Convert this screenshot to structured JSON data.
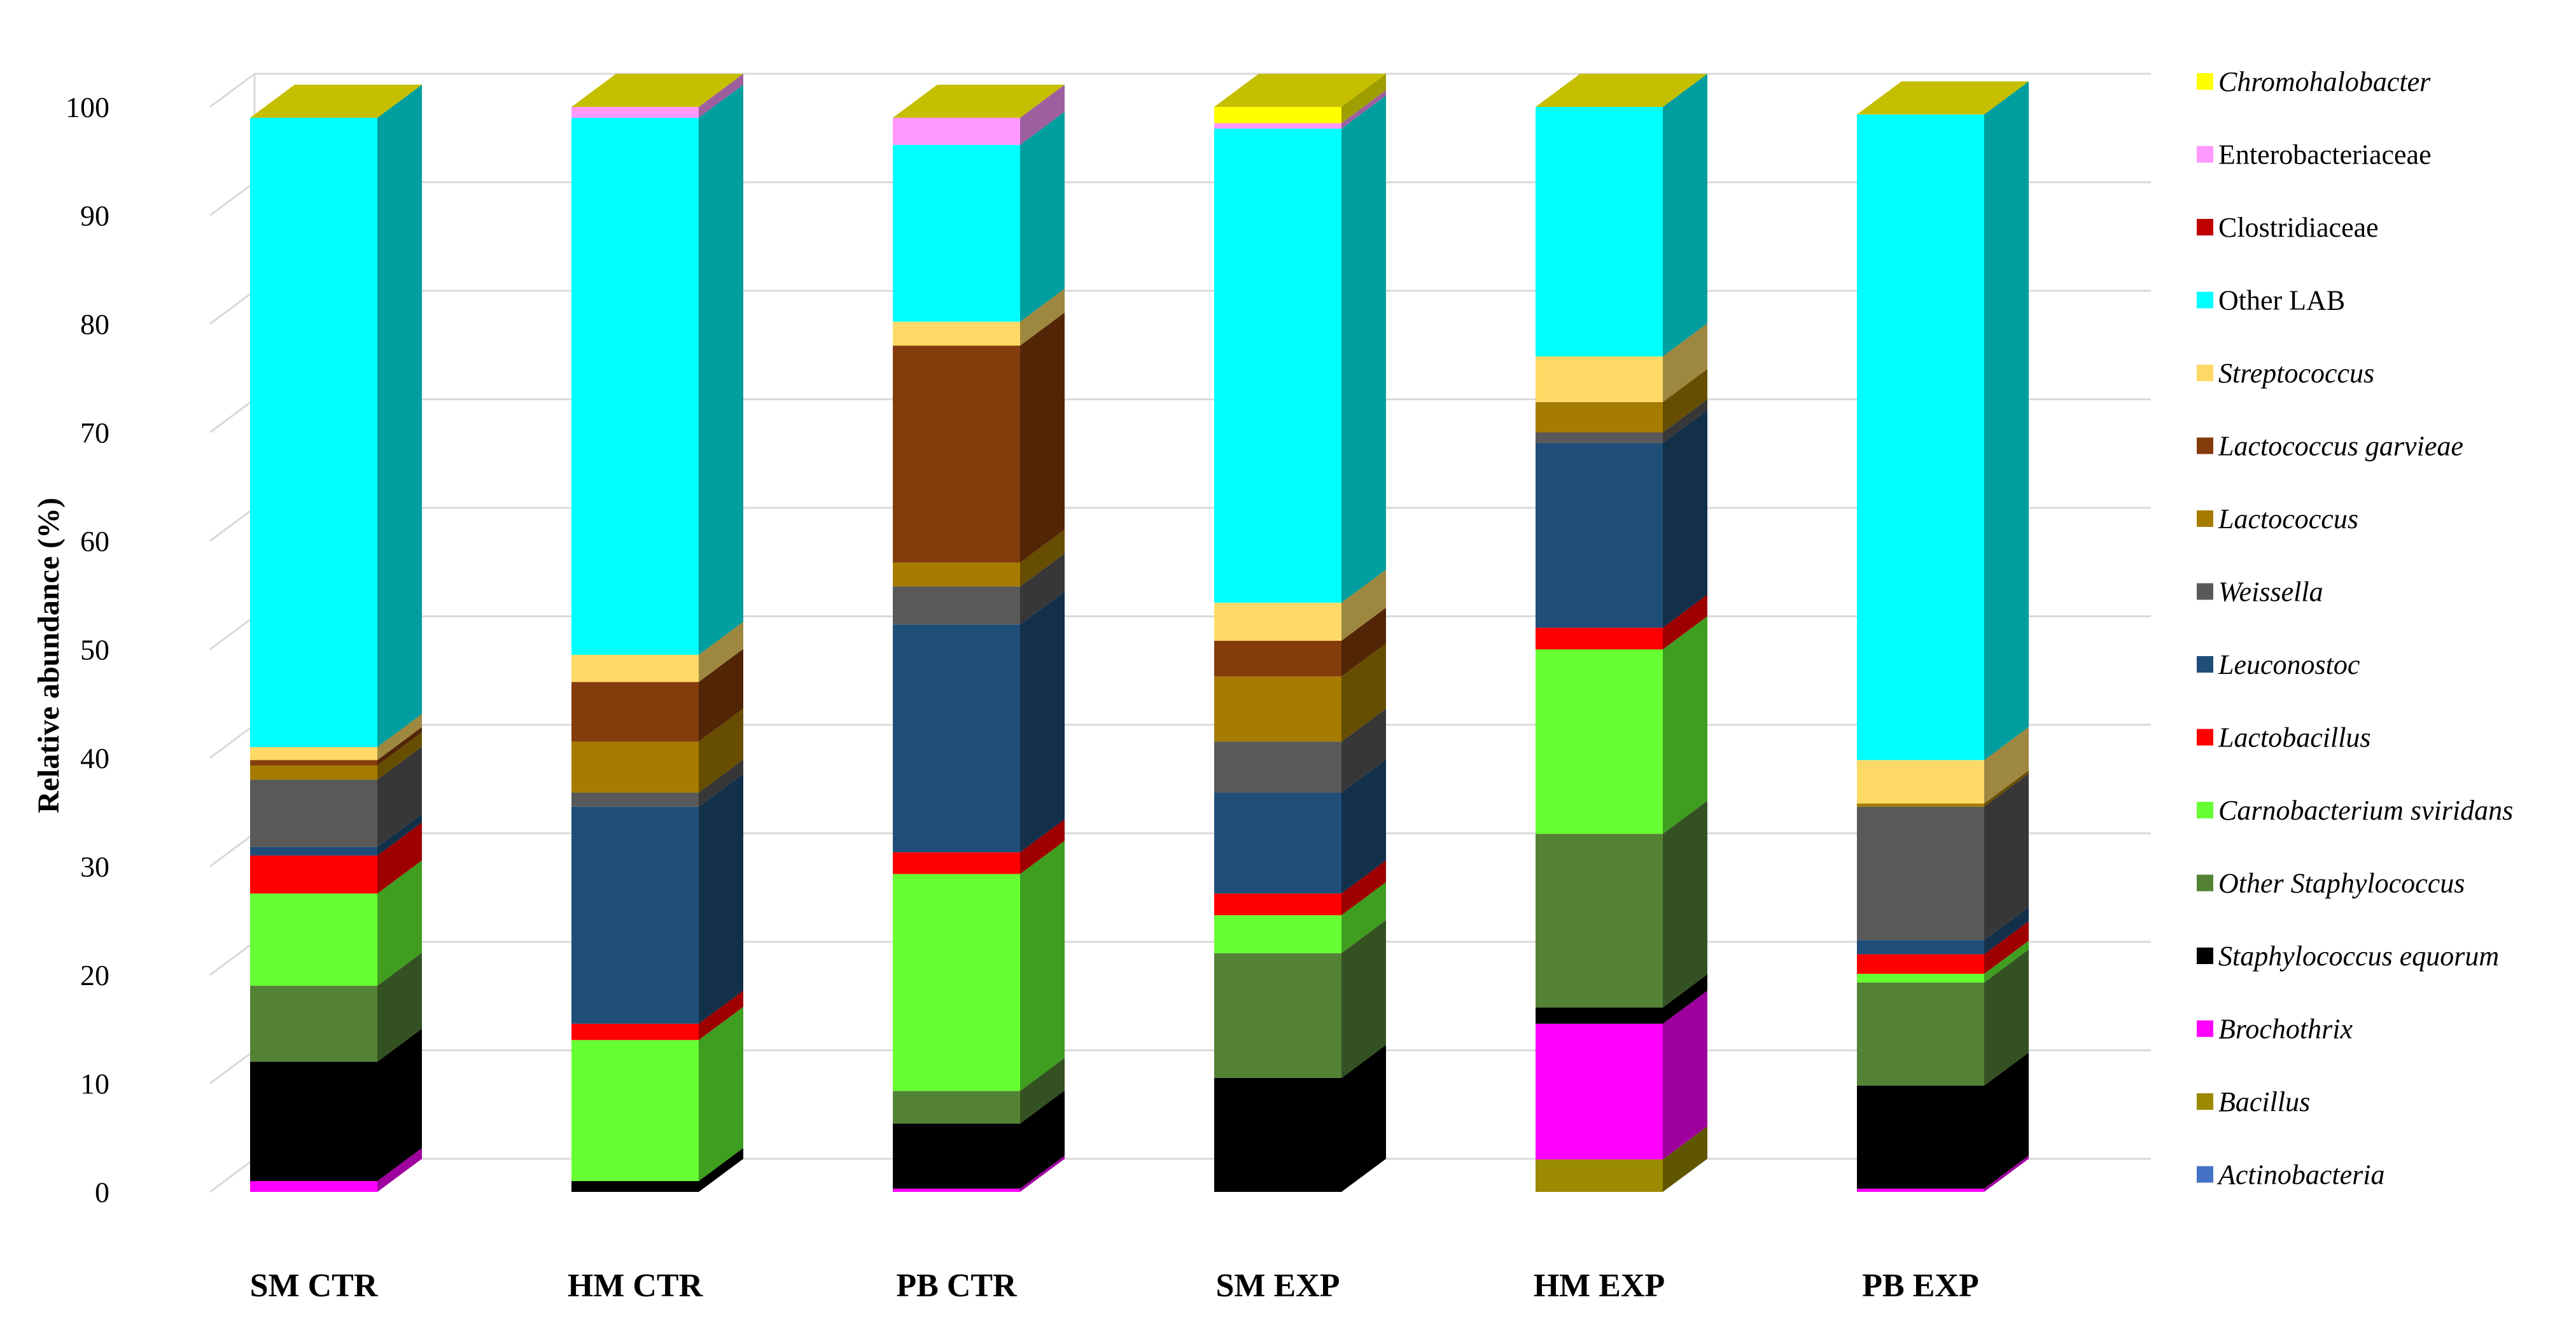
{
  "chart_data": {
    "type": "bar",
    "stacked": true,
    "three_d": true,
    "ylabel": "Relative abundance (%)",
    "ylim": [
      0,
      100
    ],
    "ytick_step": 10,
    "grid": true,
    "legend_position": "right",
    "categories": [
      "SM CTR",
      "HM CTR",
      "PB CTR",
      "SM EXP",
      "HM EXP",
      "PB EXP"
    ],
    "series": [
      {
        "name": "Actinobacteria",
        "italic": true,
        "color": "#4472C4",
        "values": [
          0,
          0,
          0,
          0,
          0,
          0
        ]
      },
      {
        "name": "Bacillus",
        "italic": true,
        "color": "#9C8A00",
        "values": [
          0,
          0,
          0,
          0,
          3,
          0
        ]
      },
      {
        "name": "Brochothrix",
        "italic": true,
        "color": "#FF00FF",
        "values": [
          1,
          0,
          0.3,
          0,
          12.5,
          0.3
        ]
      },
      {
        "name": "Staphylococcus equorum",
        "italic": true,
        "color": "#000000",
        "values": [
          11,
          1,
          6,
          10.5,
          1.5,
          9.5
        ]
      },
      {
        "name": "Other Staphylococcus",
        "italic": true,
        "color": "#548235",
        "values": [
          7,
          0,
          3,
          11.5,
          16,
          9.5
        ]
      },
      {
        "name": "Carnobacterium sviridans",
        "italic": true,
        "color": "#66FF33",
        "values": [
          8.5,
          13,
          20,
          3.5,
          17,
          0.8
        ]
      },
      {
        "name": "Lactobacillus",
        "italic": true,
        "color": "#FF0000",
        "values": [
          3.5,
          1.5,
          2,
          2,
          2,
          1.8
        ]
      },
      {
        "name": "Leuconostoc",
        "italic": true,
        "color": "#1F4E79",
        "values": [
          0.8,
          20,
          21,
          9.3,
          17,
          1.3
        ]
      },
      {
        "name": "Weissella",
        "italic": true,
        "color": "#595959",
        "values": [
          6.2,
          1.3,
          3.5,
          4.7,
          1,
          12.3
        ]
      },
      {
        "name": "Lactococcus",
        "italic": true,
        "color": "#A67C00",
        "values": [
          1.3,
          4.7,
          2.2,
          6,
          2.8,
          0.3
        ]
      },
      {
        "name": "Lactococcus garvieae",
        "italic": true,
        "color": "#843C0C",
        "values": [
          0.5,
          5.5,
          20,
          3.3,
          0,
          0
        ]
      },
      {
        "name": "Streptococcus",
        "italic": true,
        "color": "#FFD966",
        "values": [
          1.2,
          2.5,
          2.2,
          3.5,
          4.2,
          4
        ]
      },
      {
        "name": "Other LAB",
        "italic": false,
        "color": "#00FFFF",
        "values": [
          58,
          49.5,
          16.3,
          43.7,
          23,
          59.5
        ]
      },
      {
        "name": "Clostridiaceae",
        "italic": false,
        "color": "#C00000",
        "values": [
          0,
          0,
          0,
          0,
          0,
          0
        ]
      },
      {
        "name": "Enterobacteriaceae",
        "italic": false,
        "color": "#FF99FF",
        "values": [
          0,
          1,
          2.5,
          0.5,
          0,
          0
        ]
      },
      {
        "name": "Chromohalobacter",
        "italic": true,
        "color": "#FFFF00",
        "values": [
          0,
          0,
          0,
          1.5,
          0,
          0
        ]
      }
    ]
  }
}
